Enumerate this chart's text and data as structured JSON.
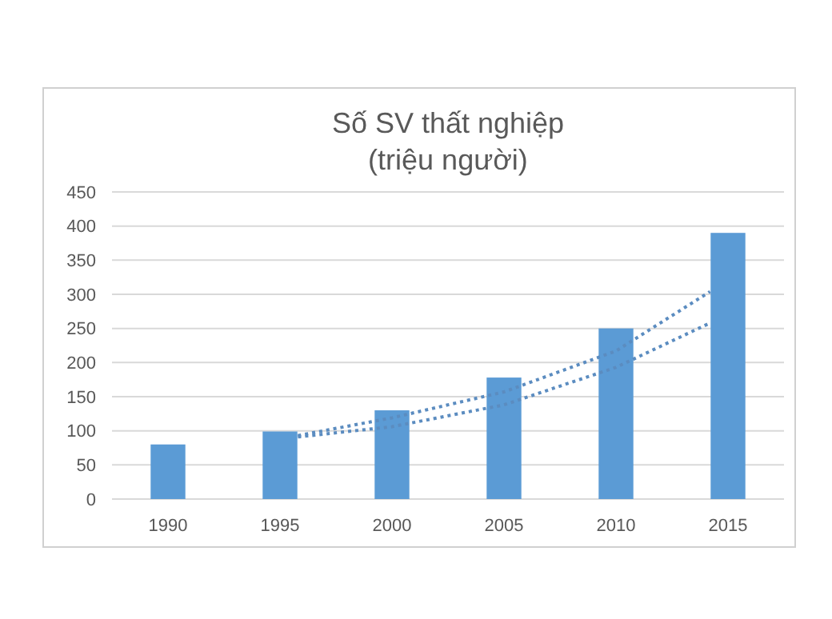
{
  "chart_data": {
    "type": "bar",
    "title": "Số SV thất nghiệp",
    "subtitle": "(triệu người)",
    "x": [
      1990,
      1995,
      2000,
      2005,
      2010,
      2015
    ],
    "xlim": [
      1987.5,
      2017.5
    ],
    "xticks": [
      1990,
      1995,
      2000,
      2005,
      2010,
      2015
    ],
    "ylim": [
      0,
      450
    ],
    "yticks": [
      0,
      50,
      100,
      150,
      200,
      250,
      300,
      350,
      400,
      450
    ],
    "grid": "y",
    "series": [
      {
        "color": "#5b9bd5",
        "values": [
          80,
          99,
          130,
          178,
          250,
          390
        ]
      },
      {
        "type": "line",
        "color": "#5b8cc0",
        "line_style": "dotted",
        "marker": "none",
        "x": [
          1995.8,
          2000,
          2005,
          2010,
          2014.2
        ],
        "values": [
          93,
          119,
          157,
          217,
          304
        ]
      },
      {
        "type": "line",
        "color": "#5b8cc0",
        "line_style": "dotted",
        "marker": "none",
        "x": [
          1995.8,
          2000,
          2005,
          2010,
          2014.2
        ],
        "values": [
          91,
          106,
          138,
          193,
          258
        ]
      }
    ]
  }
}
